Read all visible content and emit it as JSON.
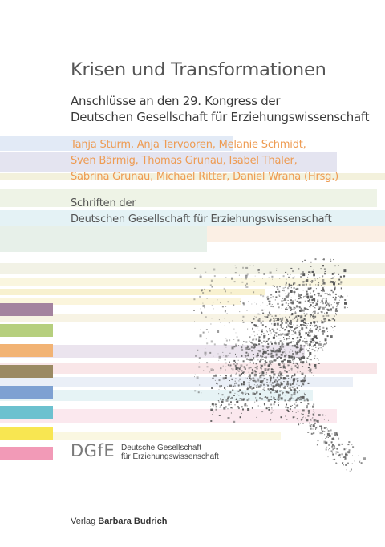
{
  "book": {
    "title": "Krisen und Transformationen",
    "subtitle_lines": [
      "Anschlüsse an den 29. Kongress der",
      "Deutschen Gesellschaft für Erziehungswissenschaft"
    ],
    "author_lines": [
      "Tanja Sturm, Anja Tervooren, Melanie Schmidt,",
      "Sven Bärmig, Thomas Grunau, Isabel Thaler,",
      "Sabrina Grunau, Michael Ritter, Daniel Wrana (Hrsg.)"
    ],
    "series_lines": [
      "Schriften der",
      "Deutschen Gesellschaft für Erziehungswissenschaft"
    ]
  },
  "society": {
    "logo_text": "DGfE",
    "name_lines": [
      "Deutsche Gesellschaft",
      "für Erziehungswissenschaft"
    ]
  },
  "publisher": {
    "prefix": "Verlag",
    "name": "Barbara Budrich"
  },
  "colors": {
    "title": "#555555",
    "authors": "#ee9b52",
    "swatches": [
      "#a4839f",
      "#b6cf7e",
      "#f2b374",
      "#9b8a63",
      "#7ea1d2",
      "#6cc1cf",
      "#f8e651",
      "#f29ab7"
    ]
  }
}
